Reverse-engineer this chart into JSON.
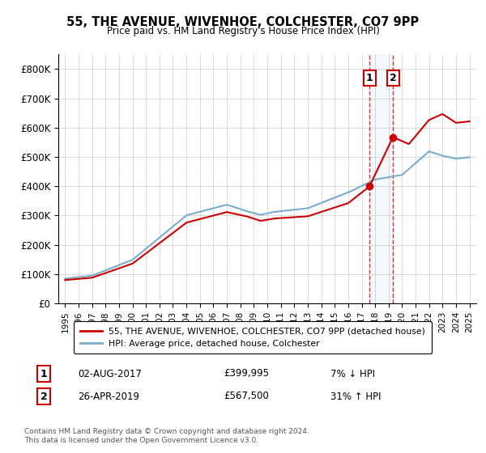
{
  "title1": "55, THE AVENUE, WIVENHOE, COLCHESTER, CO7 9PP",
  "title2": "Price paid vs. HM Land Registry's House Price Index (HPI)",
  "ylabel_ticks": [
    "£0",
    "£100K",
    "£200K",
    "£300K",
    "£400K",
    "£500K",
    "£600K",
    "£700K",
    "£800K"
  ],
  "ytick_values": [
    0,
    100000,
    200000,
    300000,
    400000,
    500000,
    600000,
    700000,
    800000
  ],
  "ylim": [
    0,
    850000
  ],
  "hpi_color": "#7aadcc",
  "price_color": "#cc0000",
  "legend1": "55, THE AVENUE, WIVENHOE, COLCHESTER, CO7 9PP (detached house)",
  "legend2": "HPI: Average price, detached house, Colchester",
  "sale1_label": "1",
  "sale1_date": "02-AUG-2017",
  "sale1_price": "£399,995",
  "sale1_hpi": "7% ↓ HPI",
  "sale2_label": "2",
  "sale2_date": "26-APR-2019",
  "sale2_price": "£567,500",
  "sale2_hpi": "31% ↑ HPI",
  "footnote": "Contains HM Land Registry data © Crown copyright and database right 2024.\nThis data is licensed under the Open Government Licence v3.0.",
  "sale1_year": 2017.58,
  "sale2_year": 2019.32,
  "sale1_value": 399995,
  "sale2_value": 567500
}
